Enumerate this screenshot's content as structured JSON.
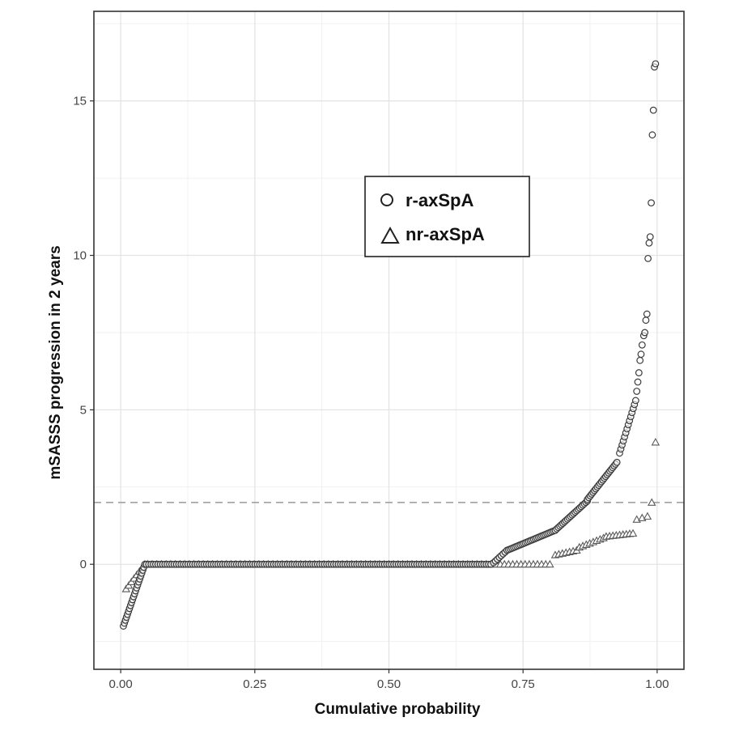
{
  "chart_data": {
    "type": "scatter",
    "title": "",
    "xlabel": "Cumulative probability",
    "ylabel": "mSASSS progression in 2 years",
    "xlim": [
      -0.05,
      1.05
    ],
    "ylim": [
      -3.4,
      17.9
    ],
    "x_ticks": [
      {
        "value": 0.0,
        "label": "0.00"
      },
      {
        "value": 0.25,
        "label": "0.25"
      },
      {
        "value": 0.5,
        "label": "0.50"
      },
      {
        "value": 0.75,
        "label": "0.75"
      },
      {
        "value": 1.0,
        "label": "1.00"
      }
    ],
    "y_ticks": [
      {
        "value": 0,
        "label": "0"
      },
      {
        "value": 5,
        "label": "5"
      },
      {
        "value": 10,
        "label": "10"
      },
      {
        "value": 15,
        "label": "15"
      }
    ],
    "grid": true,
    "reference_line": {
      "y": 2,
      "style": "dashed",
      "color": "#999999"
    },
    "legend": {
      "placement": "upper-center"
    },
    "series": [
      {
        "name": "r-axSpA",
        "marker": "circle",
        "segments": [
          {
            "x0": 0.005,
            "x1": 0.045,
            "y0": -2.0,
            "y1": 0.0,
            "n": 22
          },
          {
            "x0": 0.048,
            "x1": 0.69,
            "y0": 0.0,
            "y1": 0.0,
            "n": 150
          },
          {
            "x0": 0.695,
            "x1": 0.72,
            "y0": 0.05,
            "y1": 0.45,
            "n": 8
          },
          {
            "x0": 0.72,
            "x1": 0.81,
            "y0": 0.45,
            "y1": 1.1,
            "n": 30
          },
          {
            "x0": 0.81,
            "x1": 0.87,
            "y0": 1.1,
            "y1": 2.05,
            "n": 22
          },
          {
            "x0": 0.87,
            "x1": 0.925,
            "y0": 2.1,
            "y1": 3.3,
            "n": 22
          },
          {
            "x0": 0.93,
            "x1": 0.96,
            "y0": 3.6,
            "y1": 5.3,
            "n": 14
          }
        ],
        "points": [
          {
            "x": 0.962,
            "y": 5.6
          },
          {
            "x": 0.964,
            "y": 5.9
          },
          {
            "x": 0.966,
            "y": 6.2
          },
          {
            "x": 0.968,
            "y": 6.6
          },
          {
            "x": 0.97,
            "y": 6.8
          },
          {
            "x": 0.972,
            "y": 7.1
          },
          {
            "x": 0.975,
            "y": 7.4
          },
          {
            "x": 0.977,
            "y": 7.5
          },
          {
            "x": 0.979,
            "y": 7.9
          },
          {
            "x": 0.981,
            "y": 8.1
          },
          {
            "x": 0.983,
            "y": 9.9
          },
          {
            "x": 0.985,
            "y": 10.4
          },
          {
            "x": 0.987,
            "y": 10.6
          },
          {
            "x": 0.989,
            "y": 11.7
          },
          {
            "x": 0.991,
            "y": 13.9
          },
          {
            "x": 0.993,
            "y": 14.7
          },
          {
            "x": 0.995,
            "y": 16.1
          },
          {
            "x": 0.997,
            "y": 16.2
          }
        ]
      },
      {
        "name": "nr-axSpA",
        "marker": "triangle",
        "segments": [
          {
            "x0": 0.01,
            "x1": 0.045,
            "y0": -0.8,
            "y1": 0.0,
            "n": 8
          },
          {
            "x0": 0.05,
            "x1": 0.69,
            "y0": 0.0,
            "y1": 0.0,
            "n": 75
          },
          {
            "x0": 0.7,
            "x1": 0.8,
            "y0": 0.0,
            "y1": 0.0,
            "n": 14
          },
          {
            "x0": 0.81,
            "x1": 0.85,
            "y0": 0.3,
            "y1": 0.45,
            "n": 7
          },
          {
            "x0": 0.855,
            "x1": 0.9,
            "y0": 0.55,
            "y1": 0.85,
            "n": 8
          },
          {
            "x0": 0.905,
            "x1": 0.955,
            "y0": 0.9,
            "y1": 1.0,
            "n": 9
          }
        ],
        "points": [
          {
            "x": 0.962,
            "y": 1.45
          },
          {
            "x": 0.972,
            "y": 1.5
          },
          {
            "x": 0.982,
            "y": 1.55
          },
          {
            "x": 0.99,
            "y": 2.0
          },
          {
            "x": 0.997,
            "y": 3.95
          }
        ]
      }
    ]
  }
}
